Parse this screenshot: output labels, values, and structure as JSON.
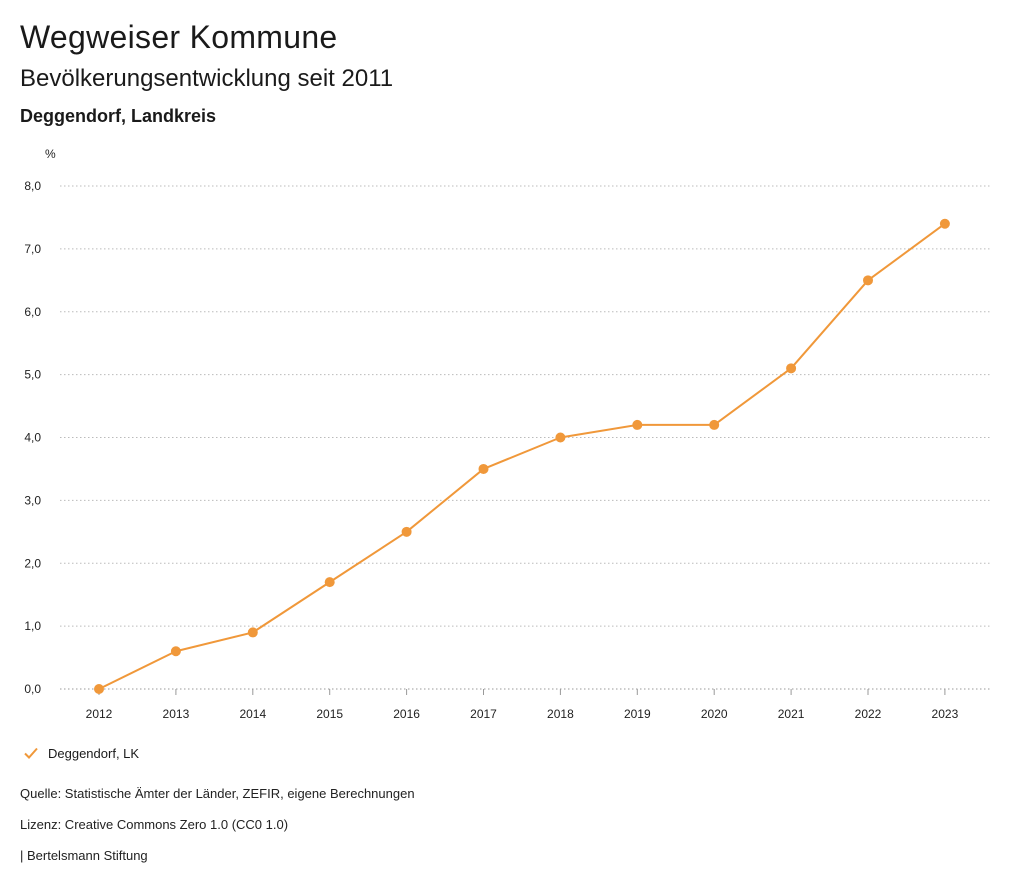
{
  "header": {
    "title": "Wegweiser Kommune",
    "subtitle": "Bevölkerungsentwicklung seit 2011",
    "region": "Deggendorf, Landkreis"
  },
  "legend": {
    "label": "Deggendorf, LK"
  },
  "footer": {
    "source": "Quelle: Statistische Ämter der Länder, ZEFIR, eigene Berechnungen",
    "license": "Lizenz: Creative Commons Zero 1.0 (CC0 1.0)",
    "publisher": "| Bertelsmann Stiftung"
  },
  "colors": {
    "series": "#f0983a",
    "grid": "#bbbbbb",
    "axis": "#999999"
  },
  "chart_data": {
    "type": "line",
    "title": "",
    "xlabel": "",
    "ylabel": "%",
    "x": [
      "2012",
      "2013",
      "2014",
      "2015",
      "2016",
      "2017",
      "2018",
      "2019",
      "2020",
      "2021",
      "2022",
      "2023"
    ],
    "series": [
      {
        "name": "Deggendorf, LK",
        "values": [
          0.0,
          0.6,
          0.9,
          1.7,
          2.5,
          3.5,
          4.0,
          4.2,
          4.2,
          5.1,
          6.5,
          7.4
        ]
      }
    ],
    "ylim": [
      0,
      8
    ],
    "yticks": [
      "0,0",
      "1,0",
      "2,0",
      "3,0",
      "4,0",
      "5,0",
      "6,0",
      "7,0",
      "8,0"
    ],
    "grid": true,
    "legend_position": "bottom-left"
  }
}
